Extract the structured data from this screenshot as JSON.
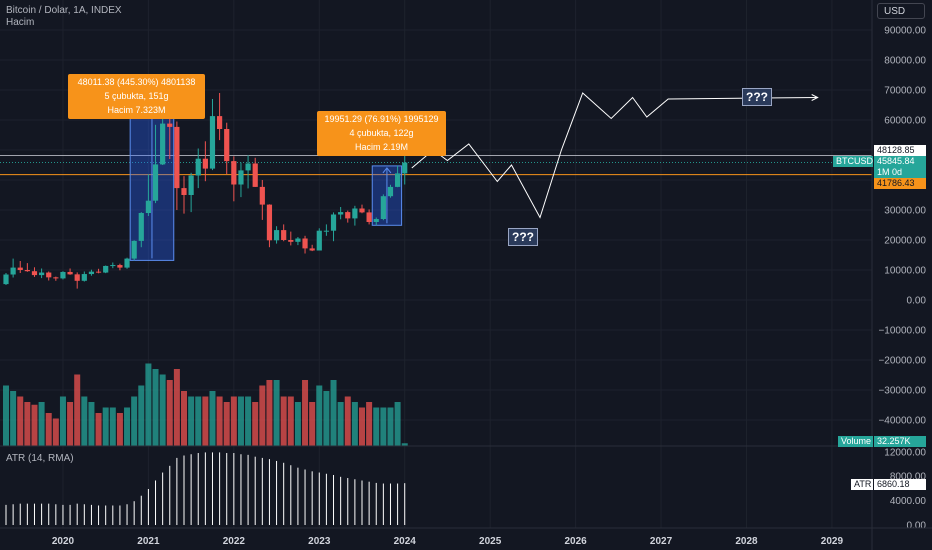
{
  "header": {
    "symbol_title": "Bitcoin / Dolar, 1A, INDEX",
    "volume_title": "Hacim",
    "atr_title": "ATR (14, RMA)"
  },
  "currency_button": "USD",
  "price_axis": {
    "ticks": [
      "90000.00",
      "80000.00",
      "70000.00",
      "60000.00",
      "50000.00",
      "40000.00",
      "30000.00",
      "20000.00",
      "10000.00",
      "0.00",
      "−10000.00",
      "−20000.00",
      "−30000.00",
      "−40000.00"
    ]
  },
  "atr_axis": {
    "ticks": [
      "12000.00",
      "8000.00",
      "4000.00",
      "0.00"
    ]
  },
  "time_axis": {
    "ticks": [
      "2020",
      "2021",
      "2022",
      "2023",
      "2024",
      "2025",
      "2026",
      "2027",
      "2028",
      "2029"
    ]
  },
  "annotations": {
    "box1": {
      "line1": "48011.38 (445.30%) 4801138",
      "line2": "5 çubukta, 151g",
      "line3": "Hacim 7.323M"
    },
    "box2": {
      "line1": "19951.29 (76.91%) 1995129",
      "line2": "4 çubukta, 122g",
      "line3": "Hacim 2.19M"
    },
    "question_label": "???"
  },
  "price_tags": {
    "upper": "48128.85",
    "symbol": "BTCUSD",
    "last": "45845.84",
    "countdown": "1M 0d",
    "lower": "41786.43"
  },
  "volume_tag": {
    "label": "Volume",
    "value": "32.257K"
  },
  "atr_tag": {
    "label": "ATR",
    "value": "6860.18"
  },
  "colors": {
    "background": "#131722",
    "up": "#26a69a",
    "down": "#ef5350",
    "accent": "#f7931a",
    "projection": "#ffffff"
  },
  "chart_data": {
    "type": "candlestick",
    "panes": [
      "price",
      "volume",
      "atr"
    ],
    "x_range": [
      "2019-05",
      "2029-06"
    ],
    "price_ylim": [
      -45000,
      95000
    ],
    "candles": [
      {
        "t": "2019-05",
        "o": 5300,
        "h": 9000,
        "l": 5000,
        "c": 8500
      },
      {
        "t": "2019-06",
        "o": 8500,
        "h": 13800,
        "l": 7500,
        "c": 10800
      },
      {
        "t": "2019-07",
        "o": 10800,
        "h": 13000,
        "l": 9000,
        "c": 10000
      },
      {
        "t": "2019-08",
        "o": 10000,
        "h": 12300,
        "l": 9400,
        "c": 9600
      },
      {
        "t": "2019-09",
        "o": 9600,
        "h": 10900,
        "l": 7700,
        "c": 8300
      },
      {
        "t": "2019-10",
        "o": 8300,
        "h": 10500,
        "l": 7300,
        "c": 9150
      },
      {
        "t": "2019-11",
        "o": 9150,
        "h": 9500,
        "l": 6500,
        "c": 7550
      },
      {
        "t": "2019-12",
        "o": 7550,
        "h": 7800,
        "l": 6400,
        "c": 7200
      },
      {
        "t": "2020-01",
        "o": 7200,
        "h": 9600,
        "l": 6850,
        "c": 9350
      },
      {
        "t": "2020-02",
        "o": 9350,
        "h": 10500,
        "l": 8400,
        "c": 8550
      },
      {
        "t": "2020-03",
        "o": 8550,
        "h": 9200,
        "l": 3800,
        "c": 6400
      },
      {
        "t": "2020-04",
        "o": 6400,
        "h": 9500,
        "l": 6150,
        "c": 8650
      },
      {
        "t": "2020-05",
        "o": 8650,
        "h": 10100,
        "l": 8100,
        "c": 9450
      },
      {
        "t": "2020-06",
        "o": 9450,
        "h": 10400,
        "l": 8900,
        "c": 9150
      },
      {
        "t": "2020-07",
        "o": 9150,
        "h": 11500,
        "l": 8950,
        "c": 11350
      },
      {
        "t": "2020-08",
        "o": 11350,
        "h": 12500,
        "l": 10600,
        "c": 11650
      },
      {
        "t": "2020-09",
        "o": 11650,
        "h": 12100,
        "l": 9900,
        "c": 10800
      },
      {
        "t": "2020-10",
        "o": 10800,
        "h": 14100,
        "l": 10400,
        "c": 13800
      },
      {
        "t": "2020-11",
        "o": 13800,
        "h": 19900,
        "l": 13200,
        "c": 19700
      },
      {
        "t": "2020-12",
        "o": 19700,
        "h": 29300,
        "l": 17600,
        "c": 29000
      },
      {
        "t": "2021-01",
        "o": 29000,
        "h": 41900,
        "l": 28000,
        "c": 33100
      },
      {
        "t": "2021-02",
        "o": 33100,
        "h": 58400,
        "l": 32300,
        "c": 45200
      },
      {
        "t": "2021-03",
        "o": 45200,
        "h": 61800,
        "l": 45000,
        "c": 58800
      },
      {
        "t": "2021-04",
        "o": 58800,
        "h": 64900,
        "l": 47000,
        "c": 57700
      },
      {
        "t": "2021-05",
        "o": 57700,
        "h": 59500,
        "l": 30000,
        "c": 37300
      },
      {
        "t": "2021-06",
        "o": 37300,
        "h": 41300,
        "l": 28800,
        "c": 35000
      },
      {
        "t": "2021-07",
        "o": 35000,
        "h": 42400,
        "l": 29300,
        "c": 41500
      },
      {
        "t": "2021-08",
        "o": 41500,
        "h": 50500,
        "l": 37300,
        "c": 47100
      },
      {
        "t": "2021-09",
        "o": 47100,
        "h": 52900,
        "l": 39600,
        "c": 43800
      },
      {
        "t": "2021-10",
        "o": 43800,
        "h": 67000,
        "l": 43300,
        "c": 61300
      },
      {
        "t": "2021-11",
        "o": 61300,
        "h": 69000,
        "l": 53300,
        "c": 57000
      },
      {
        "t": "2021-12",
        "o": 57000,
        "h": 59100,
        "l": 42000,
        "c": 46300
      },
      {
        "t": "2022-01",
        "o": 46300,
        "h": 47900,
        "l": 32900,
        "c": 38500
      },
      {
        "t": "2022-02",
        "o": 38500,
        "h": 45800,
        "l": 34300,
        "c": 43200
      },
      {
        "t": "2022-03",
        "o": 43200,
        "h": 48200,
        "l": 37200,
        "c": 45500
      },
      {
        "t": "2022-04",
        "o": 45500,
        "h": 47400,
        "l": 37700,
        "c": 37700
      },
      {
        "t": "2022-05",
        "o": 37700,
        "h": 40000,
        "l": 26700,
        "c": 31800
      },
      {
        "t": "2022-06",
        "o": 31800,
        "h": 31900,
        "l": 17600,
        "c": 19900
      },
      {
        "t": "2022-07",
        "o": 19900,
        "h": 24600,
        "l": 18800,
        "c": 23300
      },
      {
        "t": "2022-08",
        "o": 23300,
        "h": 25200,
        "l": 19600,
        "c": 20000
      },
      {
        "t": "2022-09",
        "o": 20000,
        "h": 22800,
        "l": 18200,
        "c": 19400
      },
      {
        "t": "2022-10",
        "o": 19400,
        "h": 21000,
        "l": 18300,
        "c": 20500
      },
      {
        "t": "2022-11",
        "o": 20500,
        "h": 21400,
        "l": 15500,
        "c": 17200
      },
      {
        "t": "2022-12",
        "o": 17200,
        "h": 18400,
        "l": 16300,
        "c": 16500
      },
      {
        "t": "2023-01",
        "o": 16500,
        "h": 23900,
        "l": 16500,
        "c": 23100
      },
      {
        "t": "2023-02",
        "o": 23100,
        "h": 25200,
        "l": 21400,
        "c": 23100
      },
      {
        "t": "2023-03",
        "o": 23100,
        "h": 29200,
        "l": 19600,
        "c": 28500
      },
      {
        "t": "2023-04",
        "o": 28500,
        "h": 31000,
        "l": 26900,
        "c": 29300
      },
      {
        "t": "2023-05",
        "o": 29300,
        "h": 29800,
        "l": 25800,
        "c": 27200
      },
      {
        "t": "2023-06",
        "o": 27200,
        "h": 31400,
        "l": 24800,
        "c": 30500
      },
      {
        "t": "2023-07",
        "o": 30500,
        "h": 31800,
        "l": 28900,
        "c": 29200
      },
      {
        "t": "2023-08",
        "o": 29200,
        "h": 30200,
        "l": 25200,
        "c": 26000
      },
      {
        "t": "2023-09",
        "o": 26000,
        "h": 27500,
        "l": 24900,
        "c": 27000
      },
      {
        "t": "2023-10",
        "o": 27000,
        "h": 35200,
        "l": 26600,
        "c": 34600
      },
      {
        "t": "2023-11",
        "o": 34600,
        "h": 38400,
        "l": 34100,
        "c": 37700
      },
      {
        "t": "2023-12",
        "o": 37700,
        "h": 44700,
        "l": 37600,
        "c": 42200
      },
      {
        "t": "2024-01",
        "o": 42200,
        "h": 48900,
        "l": 38500,
        "c": 45800
      }
    ],
    "volume_ylim": [
      0,
      45000
    ],
    "volume": [
      11000,
      10000,
      9000,
      8000,
      7500,
      8000,
      6000,
      5000,
      9000,
      8000,
      13000,
      9000,
      8000,
      6000,
      7000,
      7000,
      6000,
      7000,
      9000,
      11000,
      15000,
      14000,
      13000,
      12000,
      14000,
      10000,
      9000,
      9000,
      9000,
      10000,
      9000,
      8000,
      9000,
      9000,
      9000,
      8000,
      11000,
      12000,
      12000,
      9000,
      9000,
      8000,
      12000,
      8000,
      11000,
      10000,
      12000,
      8000,
      9000,
      8000,
      7000,
      8000,
      7000,
      7000,
      7000,
      8000,
      500
    ],
    "atr_ylim": [
      0,
      13000
    ],
    "atr": [
      3300,
      3400,
      3500,
      3500,
      3500,
      3500,
      3500,
      3400,
      3300,
      3300,
      3500,
      3400,
      3300,
      3200,
      3200,
      3200,
      3200,
      3400,
      3900,
      4800,
      5900,
      7300,
      8600,
      9700,
      11000,
      11400,
      11600,
      11800,
      11900,
      11900,
      11900,
      11800,
      11800,
      11600,
      11500,
      11200,
      11000,
      10800,
      10500,
      10200,
      9800,
      9400,
      9100,
      8800,
      8600,
      8400,
      8200,
      7900,
      7700,
      7500,
      7300,
      7100,
      6900,
      6800,
      6800,
      6800,
      6860
    ],
    "range_boxes": [
      {
        "from": "2020-11",
        "to": "2021-04",
        "label": "48011.38 (445.30%) 4801138"
      },
      {
        "from": "2023-09",
        "to": "2023-12",
        "label": "19951.29 (76.91%) 1995129"
      }
    ],
    "horizontal_levels": [
      48128.85,
      45845.84,
      41786.43
    ],
    "projection_path": [
      {
        "t": "2024-02",
        "p": 44000
      },
      {
        "t": "2024-05",
        "p": 50000
      },
      {
        "t": "2024-07",
        "p": 46500
      },
      {
        "t": "2024-10",
        "p": 52000
      },
      {
        "t": "2025-02",
        "p": 39500
      },
      {
        "t": "2025-04",
        "p": 45000
      },
      {
        "t": "2025-08",
        "p": 27500
      },
      {
        "t": "2025-11",
        "p": 50000
      },
      {
        "t": "2026-02",
        "p": 69000
      },
      {
        "t": "2026-06",
        "p": 60500
      },
      {
        "t": "2026-09",
        "p": 67500
      },
      {
        "t": "2026-11",
        "p": 61000
      },
      {
        "t": "2027-02",
        "p": 67000
      },
      {
        "t": "2028-11",
        "p": 67500
      }
    ]
  }
}
